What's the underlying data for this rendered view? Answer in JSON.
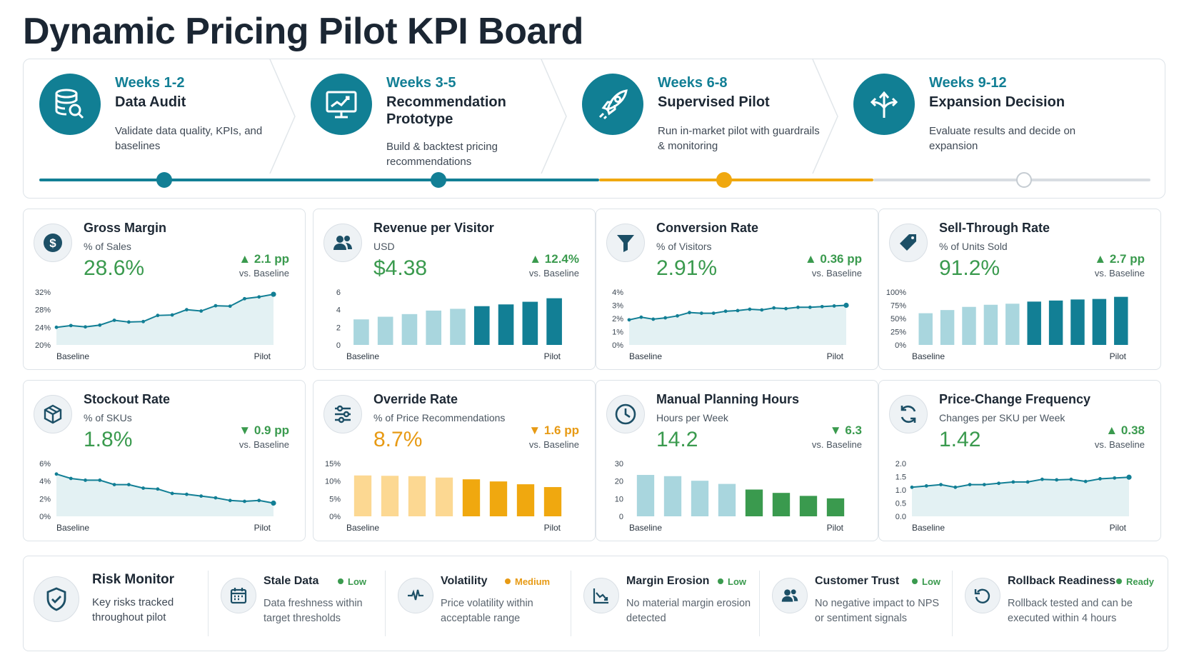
{
  "title": "Dynamic Pricing Pilot KPI Board",
  "colors": {
    "teal": "#127f95",
    "green": "#3a9a4e",
    "orange": "#e79a14",
    "gray": "#d8dde2"
  },
  "timeline": {
    "phases": [
      {
        "weeks": "Weeks 1-2",
        "title": "Data Audit",
        "desc": "Validate data quality, KPIs, and baselines",
        "icon": "database-search-icon",
        "status": "complete"
      },
      {
        "weeks": "Weeks 3-5",
        "title": "Recommendation Prototype",
        "desc": "Build & backtest pricing recommendations",
        "icon": "monitor-chart-icon",
        "status": "complete"
      },
      {
        "weeks": "Weeks 6-8",
        "title": "Supervised Pilot",
        "desc": "Run in-market pilot with guardrails & monitoring",
        "icon": "rocket-icon",
        "status": "current"
      },
      {
        "weeks": "Weeks 9-12",
        "title": "Expansion Decision",
        "desc": "Evaluate results and decide on expansion",
        "icon": "split-arrows-icon",
        "status": "upcoming"
      }
    ]
  },
  "kpis": [
    {
      "name": "Gross Margin",
      "unit": "% of Sales",
      "value": "28.6%",
      "delta": "2.1 pp",
      "direction": "up",
      "tone": "green",
      "vs": "vs. Baseline",
      "icon": "dollar-icon"
    },
    {
      "name": "Revenue per Visitor",
      "unit": "USD",
      "value": "$4.38",
      "delta": "12.4%",
      "direction": "up",
      "tone": "green",
      "vs": "vs. Baseline",
      "icon": "users-icon"
    },
    {
      "name": "Conversion Rate",
      "unit": "% of Visitors",
      "value": "2.91%",
      "delta": "0.36 pp",
      "direction": "up",
      "tone": "green",
      "vs": "vs. Baseline",
      "icon": "funnel-icon"
    },
    {
      "name": "Sell-Through Rate",
      "unit": "% of Units Sold",
      "value": "91.2%",
      "delta": "2.7 pp",
      "direction": "up",
      "tone": "green",
      "vs": "vs. Baseline",
      "icon": "tag-icon"
    },
    {
      "name": "Stockout Rate",
      "unit": "% of SKUs",
      "value": "1.8%",
      "delta": "0.9 pp",
      "direction": "down",
      "tone": "green",
      "vs": "vs. Baseline",
      "icon": "box-icon"
    },
    {
      "name": "Override Rate",
      "unit": "% of Price Recommendations",
      "value": "8.7%",
      "delta": "1.6 pp",
      "direction": "down",
      "tone": "orange",
      "vs": "vs. Baseline",
      "icon": "sliders-icon"
    },
    {
      "name": "Manual Planning Hours",
      "unit": "Hours per Week",
      "value": "14.2",
      "delta": "6.3",
      "direction": "down",
      "tone": "green",
      "vs": "vs. Baseline",
      "icon": "clock-icon"
    },
    {
      "name": "Price-Change Frequency",
      "unit": "Changes per SKU per Week",
      "value": "1.42",
      "delta": "0.38",
      "direction": "up",
      "tone": "green",
      "vs": "vs. Baseline",
      "icon": "refresh-icon"
    }
  ],
  "chart_data": [
    {
      "type": "area",
      "x_start_label": "Baseline",
      "x_end_label": "Pilot",
      "yticks": [
        "32%",
        "28%",
        "24%",
        "20%"
      ],
      "ylim": [
        20,
        32
      ],
      "values": [
        24.0,
        24.4,
        24.1,
        24.5,
        25.6,
        25.2,
        25.3,
        26.7,
        26.8,
        28.0,
        27.7,
        28.9,
        28.8,
        30.5,
        30.9,
        31.5
      ]
    },
    {
      "type": "bar",
      "x_start_label": "Baseline",
      "x_end_label": "Pilot",
      "yticks": [
        "6",
        "4",
        "2",
        "0"
      ],
      "ylim": [
        0,
        6
      ],
      "values": [
        2.9,
        3.2,
        3.5,
        3.9,
        4.1,
        4.4,
        4.6,
        4.9,
        5.3
      ],
      "highlight_from": 5
    },
    {
      "type": "area",
      "x_start_label": "Baseline",
      "x_end_label": "Pilot",
      "yticks": [
        "4%",
        "3%",
        "2%",
        "1%",
        "0%"
      ],
      "ylim": [
        0,
        4
      ],
      "values": [
        1.9,
        2.1,
        1.95,
        2.05,
        2.2,
        2.45,
        2.4,
        2.4,
        2.55,
        2.6,
        2.7,
        2.65,
        2.8,
        2.75,
        2.85,
        2.85,
        2.9,
        2.95,
        3.0
      ]
    },
    {
      "type": "bar",
      "x_start_label": "Baseline",
      "x_end_label": "Pilot",
      "yticks": [
        "100%",
        "75%",
        "50%",
        "25%",
        "0%"
      ],
      "ylim": [
        0,
        100
      ],
      "values": [
        60,
        66,
        72,
        76,
        78,
        82,
        84,
        86,
        87,
        91
      ],
      "highlight_from": 5
    },
    {
      "type": "area",
      "x_start_label": "Baseline",
      "x_end_label": "Pilot",
      "yticks": [
        "6%",
        "4%",
        "2%",
        "0%"
      ],
      "ylim": [
        0,
        6
      ],
      "values": [
        4.8,
        4.3,
        4.1,
        4.1,
        3.6,
        3.6,
        3.2,
        3.1,
        2.6,
        2.5,
        2.3,
        2.1,
        1.8,
        1.7,
        1.8,
        1.5
      ]
    },
    {
      "type": "bar",
      "x_start_label": "Baseline",
      "x_end_label": "Pilot",
      "yticks": [
        "15%",
        "10%",
        "5%",
        "0%"
      ],
      "ylim": [
        0,
        15
      ],
      "values": [
        11.6,
        11.5,
        11.4,
        11.0,
        10.5,
        9.9,
        9.1,
        8.3
      ],
      "highlight_from": 4
    },
    {
      "type": "bar",
      "x_start_label": "Baseline",
      "x_end_label": "Pilot",
      "yticks": [
        "30",
        "20",
        "10",
        "0"
      ],
      "ylim": [
        0,
        30
      ],
      "values": [
        23.5,
        22.8,
        20.2,
        18.4,
        15.2,
        13.3,
        11.6,
        10.2
      ],
      "highlight_from": 4
    },
    {
      "type": "area",
      "x_start_label": "Baseline",
      "x_end_label": "Pilot",
      "yticks": [
        "2.0",
        "1.5",
        "1.0",
        "0.5",
        "0.0"
      ],
      "ylim": [
        0,
        2
      ],
      "values": [
        1.1,
        1.15,
        1.2,
        1.1,
        1.2,
        1.2,
        1.25,
        1.3,
        1.3,
        1.4,
        1.38,
        1.4,
        1.32,
        1.42,
        1.45,
        1.48
      ]
    }
  ],
  "risk": {
    "title": "Risk Monitor",
    "subtitle": "Key risks tracked throughout pilot",
    "items": [
      {
        "name": "Stale Data",
        "status": "Low",
        "tone": "green",
        "desc": "Data freshness within target thresholds",
        "icon": "calendar-icon"
      },
      {
        "name": "Volatility",
        "status": "Medium",
        "tone": "orange",
        "desc": "Price volatility within acceptable range",
        "icon": "pulse-icon"
      },
      {
        "name": "Margin Erosion",
        "status": "Low",
        "tone": "green",
        "desc": "No material margin erosion detected",
        "icon": "trend-down-icon"
      },
      {
        "name": "Customer Trust",
        "status": "Low",
        "tone": "green",
        "desc": "No negative impact to NPS or sentiment signals",
        "icon": "users-icon"
      },
      {
        "name": "Rollback Readiness",
        "status": "Ready",
        "tone": "green",
        "desc": "Rollback tested and can be executed within 4 hours",
        "icon": "rollback-icon"
      }
    ]
  }
}
